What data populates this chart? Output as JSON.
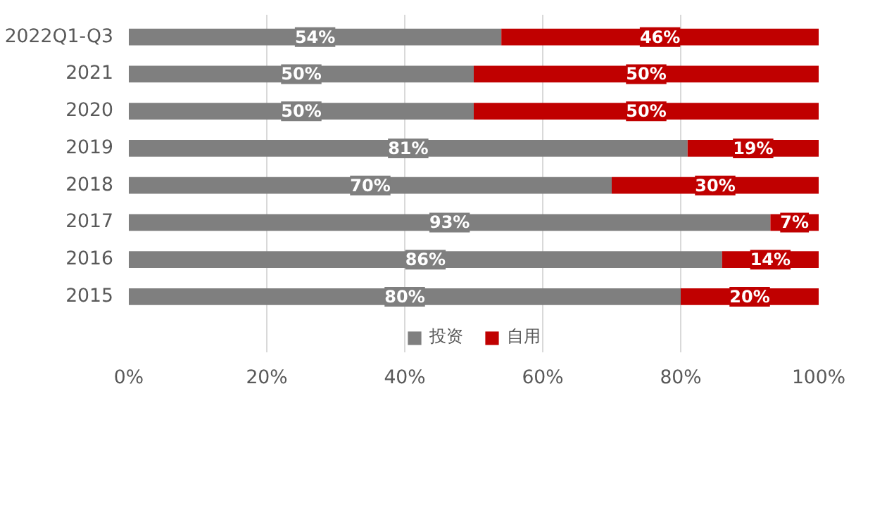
{
  "chart_data": {
    "type": "bar",
    "orientation": "horizontal",
    "stacked": true,
    "categories": [
      "2022Q1-Q3",
      "2021",
      "2020",
      "2019",
      "2018",
      "2017",
      "2016",
      "2015"
    ],
    "series": [
      {
        "name": "投资",
        "color": "#7f7f7f",
        "values": [
          54,
          50,
          50,
          81,
          70,
          93,
          86,
          80
        ],
        "value_labels": [
          "54%",
          "50%",
          "50%",
          "81%",
          "70%",
          "93%",
          "86%",
          "80%"
        ]
      },
      {
        "name": "自用",
        "color": "#c00000",
        "values": [
          46,
          50,
          50,
          19,
          30,
          7,
          14,
          20
        ],
        "value_labels": [
          "46%",
          "50%",
          "50%",
          "19%",
          "30%",
          "7%",
          "14%",
          "20%"
        ]
      }
    ],
    "xlim": [
      0,
      100
    ],
    "xticks": [
      {
        "value": 0,
        "label": "0%"
      },
      {
        "value": 20,
        "label": "20%"
      },
      {
        "value": 40,
        "label": "40%"
      },
      {
        "value": 60,
        "label": "60%"
      },
      {
        "value": 80,
        "label": "80%"
      },
      {
        "value": 100,
        "label": "100%"
      }
    ],
    "grid": "x",
    "legend": "bottom"
  }
}
